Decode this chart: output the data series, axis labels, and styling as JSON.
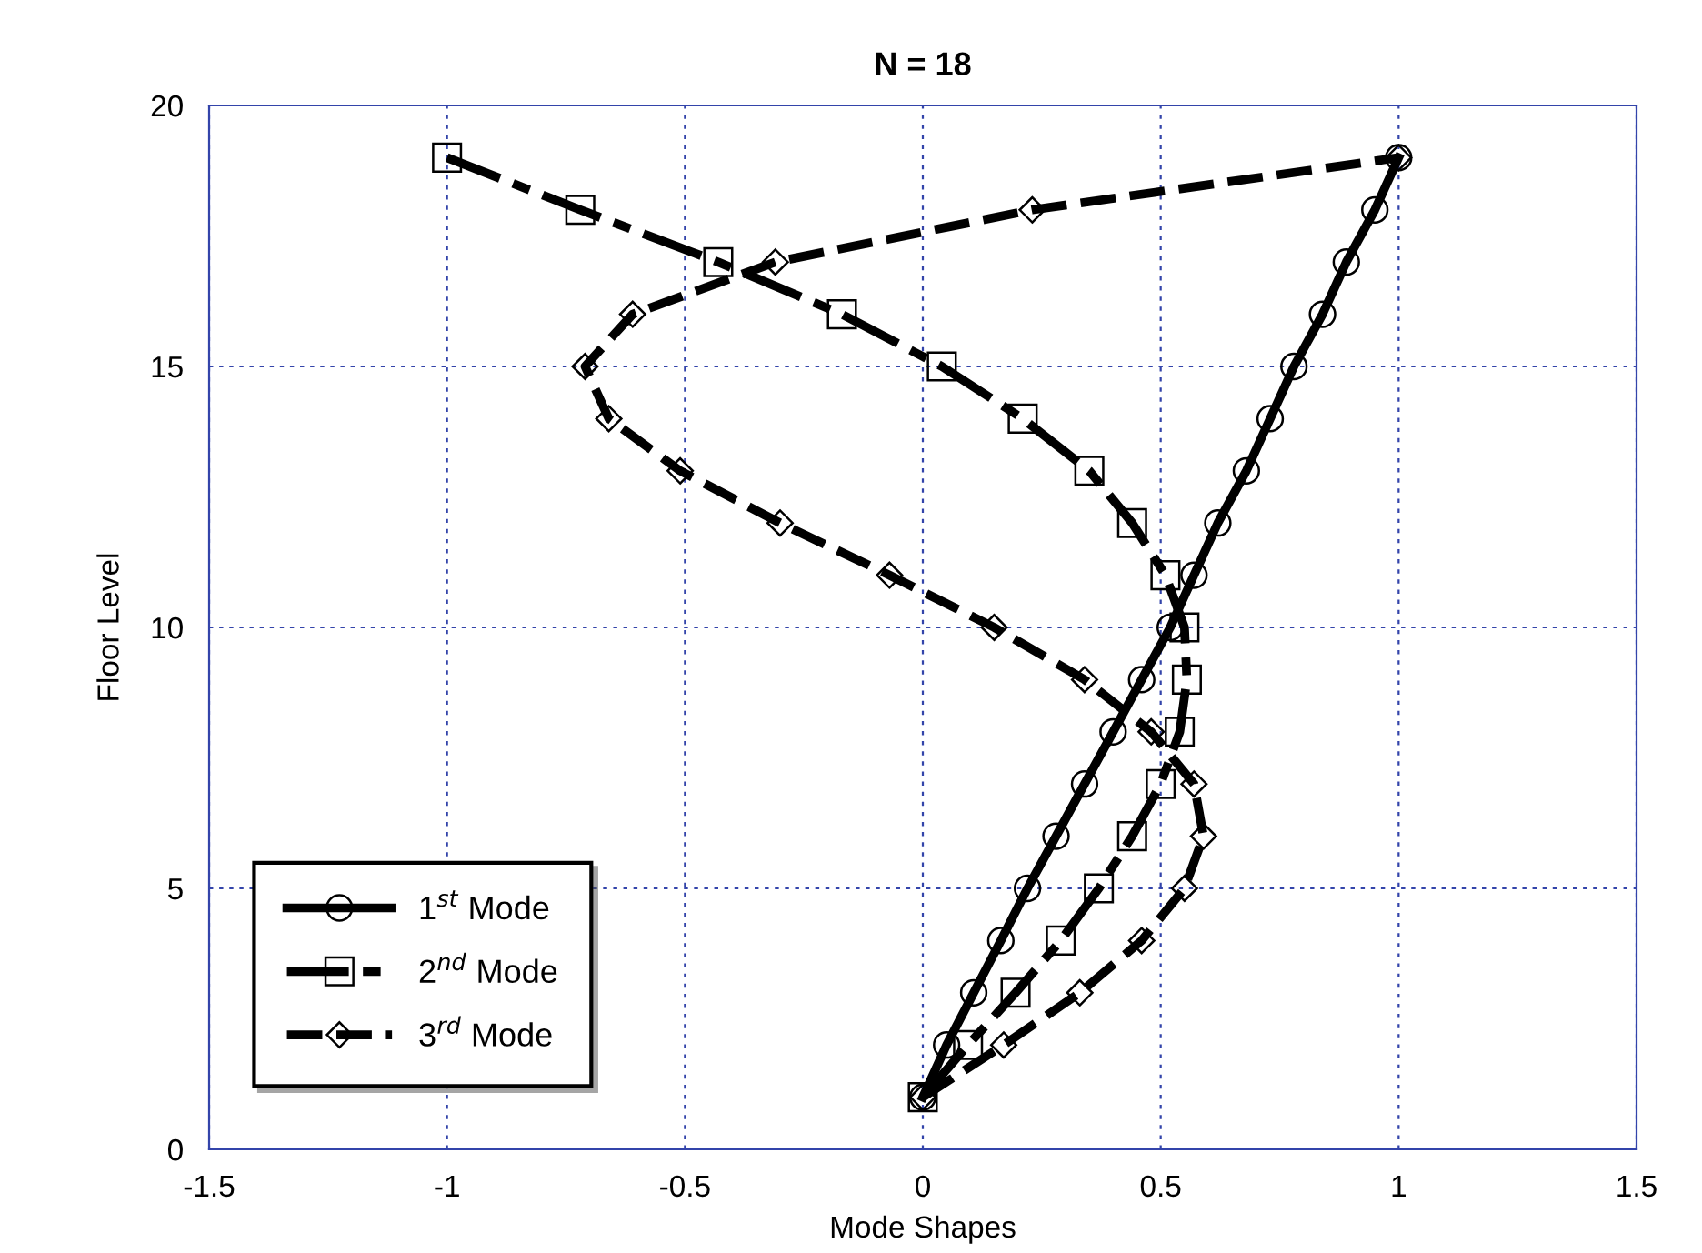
{
  "chart_data": {
    "type": "line",
    "title": "N = 18",
    "xlabel": "Mode Shapes",
    "ylabel": "Floor Level",
    "xlim": [
      -1.5,
      1.5
    ],
    "xticks": [
      -1.5,
      -1,
      -0.5,
      0,
      0.5,
      1,
      1.5
    ],
    "ylim": [
      0,
      20
    ],
    "yticks": [
      0,
      5,
      10,
      15,
      20
    ],
    "grid": true,
    "legend": "bottom left",
    "series": [
      {
        "name": "1$^{st}$ Mode",
        "color": "#000000",
        "marker": "circle",
        "line_style": "solid",
        "x": [
          0,
          0.05,
          0.107,
          0.164,
          0.22,
          0.28,
          0.34,
          0.4,
          0.46,
          0.52,
          0.57,
          0.62,
          0.68,
          0.73,
          0.78,
          0.84,
          0.89,
          0.95,
          1.0
        ],
        "values": [
          1,
          2,
          3,
          4,
          5,
          6,
          7,
          8,
          9,
          10,
          11,
          12,
          13,
          14,
          15,
          16,
          17,
          18,
          19
        ]
      },
      {
        "name": "2$^{nd}$ Mode",
        "color": "#000000",
        "marker": "square",
        "line_style": "dashed",
        "x": [
          0,
          0.095,
          0.195,
          0.29,
          0.37,
          0.44,
          0.5,
          0.54,
          0.555,
          0.55,
          0.51,
          0.44,
          0.35,
          0.21,
          0.04,
          -0.17,
          -0.43,
          -0.72,
          -1.0
        ],
        "values": [
          1,
          2,
          3,
          4,
          5,
          6,
          7,
          8,
          9,
          10,
          11,
          12,
          13,
          14,
          15,
          16,
          17,
          18,
          19
        ]
      },
      {
        "name": "3$^{rd}$ Mode",
        "color": "#000000",
        "marker": "diamond",
        "line_style": "dashed",
        "x": [
          0,
          0.17,
          0.33,
          0.46,
          0.55,
          0.59,
          0.57,
          0.48,
          0.34,
          0.15,
          -0.07,
          -0.3,
          -0.51,
          -0.66,
          -0.71,
          -0.61,
          -0.31,
          0.23,
          1.0
        ],
        "values": [
          1,
          2,
          3,
          4,
          5,
          6,
          7,
          8,
          9,
          10,
          11,
          12,
          13,
          14,
          15,
          16,
          17,
          18,
          19
        ]
      }
    ]
  }
}
